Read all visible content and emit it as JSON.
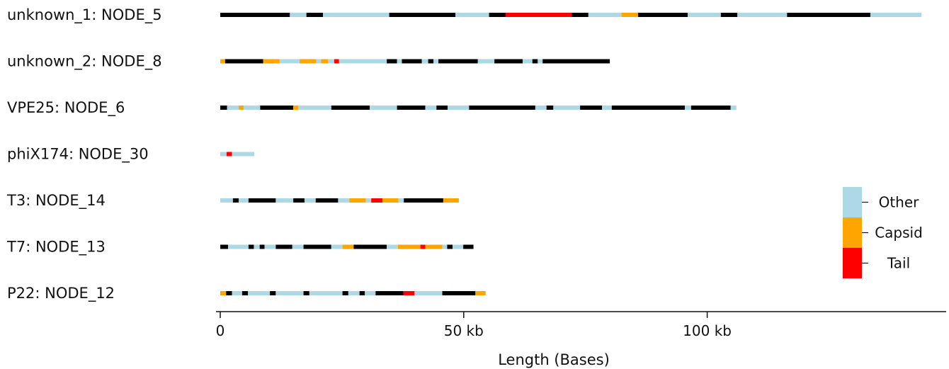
{
  "chart_data": {
    "type": "bar",
    "title": "",
    "xlabel": "Length (Bases)",
    "ylabel": "",
    "xlim": [
      0,
      145000
    ],
    "x_ticks": [
      {
        "value": 0,
        "label": "0"
      },
      {
        "value": 50000,
        "label": "50 kb"
      },
      {
        "value": 100000,
        "label": "100 kb"
      }
    ],
    "grid": false,
    "legend_position": "right",
    "colors": {
      "Other": "#add8e6",
      "Capsid": "#ffa500",
      "Tail": "#ff0000",
      "unannotated": "#000000"
    },
    "legend": [
      {
        "name": "Other",
        "color": "#add8e6"
      },
      {
        "name": "Capsid",
        "color": "#ffa500"
      },
      {
        "name": "Tail",
        "color": "#ff0000"
      }
    ],
    "genomes": [
      {
        "label": "unknown_1: NODE_5",
        "length": 144000,
        "segments": [
          {
            "start": 0,
            "end": 14300,
            "class": "unannotated"
          },
          {
            "start": 14300,
            "end": 17700,
            "class": "Other"
          },
          {
            "start": 17700,
            "end": 21100,
            "class": "unannotated"
          },
          {
            "start": 21100,
            "end": 34700,
            "class": "Other"
          },
          {
            "start": 34700,
            "end": 48300,
            "class": "unannotated"
          },
          {
            "start": 48300,
            "end": 55200,
            "class": "Other"
          },
          {
            "start": 55200,
            "end": 58600,
            "class": "unannotated"
          },
          {
            "start": 58600,
            "end": 72200,
            "class": "Tail"
          },
          {
            "start": 72200,
            "end": 75600,
            "class": "unannotated"
          },
          {
            "start": 75600,
            "end": 82400,
            "class": "Other"
          },
          {
            "start": 82400,
            "end": 85800,
            "class": "Capsid"
          },
          {
            "start": 85800,
            "end": 96000,
            "class": "unannotated"
          },
          {
            "start": 96000,
            "end": 102800,
            "class": "Other"
          },
          {
            "start": 102800,
            "end": 106200,
            "class": "unannotated"
          },
          {
            "start": 106200,
            "end": 116400,
            "class": "Other"
          },
          {
            "start": 116400,
            "end": 133500,
            "class": "unannotated"
          },
          {
            "start": 133500,
            "end": 144000,
            "class": "Other"
          }
        ]
      },
      {
        "label": "unknown_2: NODE_8",
        "length": 80000,
        "segments": [
          {
            "start": 0,
            "end": 1000,
            "class": "Capsid"
          },
          {
            "start": 1000,
            "end": 8800,
            "class": "unannotated"
          },
          {
            "start": 8800,
            "end": 12200,
            "class": "Capsid"
          },
          {
            "start": 12200,
            "end": 16300,
            "class": "Other"
          },
          {
            "start": 16300,
            "end": 19700,
            "class": "Capsid"
          },
          {
            "start": 19700,
            "end": 20700,
            "class": "Other"
          },
          {
            "start": 20700,
            "end": 22100,
            "class": "Capsid"
          },
          {
            "start": 22100,
            "end": 23400,
            "class": "Other"
          },
          {
            "start": 23400,
            "end": 24400,
            "class": "Tail"
          },
          {
            "start": 24400,
            "end": 34200,
            "class": "Other"
          },
          {
            "start": 34200,
            "end": 36300,
            "class": "unannotated"
          },
          {
            "start": 36300,
            "end": 37300,
            "class": "Other"
          },
          {
            "start": 37300,
            "end": 41400,
            "class": "unannotated"
          },
          {
            "start": 41400,
            "end": 42700,
            "class": "Other"
          },
          {
            "start": 42700,
            "end": 43800,
            "class": "unannotated"
          },
          {
            "start": 43800,
            "end": 44800,
            "class": "Other"
          },
          {
            "start": 44800,
            "end": 52900,
            "class": "unannotated"
          },
          {
            "start": 52900,
            "end": 56300,
            "class": "Other"
          },
          {
            "start": 56300,
            "end": 62100,
            "class": "unannotated"
          },
          {
            "start": 62100,
            "end": 64100,
            "class": "Other"
          },
          {
            "start": 64100,
            "end": 65200,
            "class": "unannotated"
          },
          {
            "start": 65200,
            "end": 66200,
            "class": "Other"
          },
          {
            "start": 66200,
            "end": 80000,
            "class": "unannotated"
          }
        ]
      },
      {
        "label": "VPE25: NODE_6",
        "length": 106000,
        "segments": [
          {
            "start": 0,
            "end": 1400,
            "class": "unannotated"
          },
          {
            "start": 1400,
            "end": 3800,
            "class": "Other"
          },
          {
            "start": 3800,
            "end": 4800,
            "class": "Capsid"
          },
          {
            "start": 4800,
            "end": 8200,
            "class": "Other"
          },
          {
            "start": 8200,
            "end": 15000,
            "class": "unannotated"
          },
          {
            "start": 15000,
            "end": 16000,
            "class": "Capsid"
          },
          {
            "start": 16000,
            "end": 22800,
            "class": "Other"
          },
          {
            "start": 22800,
            "end": 30700,
            "class": "unannotated"
          },
          {
            "start": 30700,
            "end": 36300,
            "class": "Other"
          },
          {
            "start": 36300,
            "end": 42100,
            "class": "unannotated"
          },
          {
            "start": 42100,
            "end": 44400,
            "class": "Other"
          },
          {
            "start": 44400,
            "end": 46700,
            "class": "unannotated"
          },
          {
            "start": 46700,
            "end": 51100,
            "class": "Other"
          },
          {
            "start": 51100,
            "end": 64700,
            "class": "unannotated"
          },
          {
            "start": 64700,
            "end": 67000,
            "class": "Other"
          },
          {
            "start": 67000,
            "end": 68400,
            "class": "unannotated"
          },
          {
            "start": 68400,
            "end": 73900,
            "class": "Other"
          },
          {
            "start": 73900,
            "end": 78400,
            "class": "unannotated"
          },
          {
            "start": 78400,
            "end": 80400,
            "class": "Other"
          },
          {
            "start": 80400,
            "end": 95400,
            "class": "unannotated"
          },
          {
            "start": 95400,
            "end": 96700,
            "class": "Other"
          },
          {
            "start": 96700,
            "end": 104800,
            "class": "unannotated"
          },
          {
            "start": 104800,
            "end": 106000,
            "class": "Other"
          }
        ]
      },
      {
        "label": "phiX174: NODE_30",
        "length": 7000,
        "segments": [
          {
            "start": 0,
            "end": 1300,
            "class": "Other"
          },
          {
            "start": 1300,
            "end": 2400,
            "class": "Tail"
          },
          {
            "start": 2400,
            "end": 7000,
            "class": "Other"
          }
        ]
      },
      {
        "label": "T3: NODE_14",
        "length": 49000,
        "segments": [
          {
            "start": 0,
            "end": 2600,
            "class": "Other"
          },
          {
            "start": 2600,
            "end": 3800,
            "class": "unannotated"
          },
          {
            "start": 3800,
            "end": 5800,
            "class": "Other"
          },
          {
            "start": 5800,
            "end": 11400,
            "class": "unannotated"
          },
          {
            "start": 11400,
            "end": 15000,
            "class": "Other"
          },
          {
            "start": 15000,
            "end": 17300,
            "class": "unannotated"
          },
          {
            "start": 17300,
            "end": 19600,
            "class": "Other"
          },
          {
            "start": 19600,
            "end": 24200,
            "class": "unannotated"
          },
          {
            "start": 24200,
            "end": 26500,
            "class": "Other"
          },
          {
            "start": 26500,
            "end": 29900,
            "class": "Capsid"
          },
          {
            "start": 29900,
            "end": 31000,
            "class": "Other"
          },
          {
            "start": 31000,
            "end": 33300,
            "class": "Tail"
          },
          {
            "start": 33300,
            "end": 36600,
            "class": "Capsid"
          },
          {
            "start": 36600,
            "end": 37700,
            "class": "Other"
          },
          {
            "start": 37700,
            "end": 45800,
            "class": "unannotated"
          },
          {
            "start": 45800,
            "end": 49000,
            "class": "Capsid"
          }
        ]
      },
      {
        "label": "T7: NODE_13",
        "length": 52000,
        "segments": [
          {
            "start": 0,
            "end": 1600,
            "class": "unannotated"
          },
          {
            "start": 1600,
            "end": 5800,
            "class": "Other"
          },
          {
            "start": 5800,
            "end": 6900,
            "class": "unannotated"
          },
          {
            "start": 6900,
            "end": 8100,
            "class": "Other"
          },
          {
            "start": 8100,
            "end": 9100,
            "class": "unannotated"
          },
          {
            "start": 9100,
            "end": 11400,
            "class": "Other"
          },
          {
            "start": 11400,
            "end": 14800,
            "class": "unannotated"
          },
          {
            "start": 14800,
            "end": 17100,
            "class": "Other"
          },
          {
            "start": 17100,
            "end": 22800,
            "class": "unannotated"
          },
          {
            "start": 22800,
            "end": 25100,
            "class": "Other"
          },
          {
            "start": 25100,
            "end": 27400,
            "class": "Capsid"
          },
          {
            "start": 27400,
            "end": 34200,
            "class": "unannotated"
          },
          {
            "start": 34200,
            "end": 36500,
            "class": "Other"
          },
          {
            "start": 36500,
            "end": 41100,
            "class": "Capsid"
          },
          {
            "start": 41100,
            "end": 42100,
            "class": "Tail"
          },
          {
            "start": 42100,
            "end": 45600,
            "class": "Capsid"
          },
          {
            "start": 45600,
            "end": 46600,
            "class": "Other"
          },
          {
            "start": 46600,
            "end": 47700,
            "class": "unannotated"
          },
          {
            "start": 47700,
            "end": 49900,
            "class": "Other"
          },
          {
            "start": 49900,
            "end": 52000,
            "class": "unannotated"
          }
        ]
      },
      {
        "label": "P22: NODE_12",
        "length": 54500,
        "segments": [
          {
            "start": 0,
            "end": 1200,
            "class": "Capsid"
          },
          {
            "start": 1200,
            "end": 2400,
            "class": "unannotated"
          },
          {
            "start": 2400,
            "end": 4500,
            "class": "Other"
          },
          {
            "start": 4500,
            "end": 5700,
            "class": "unannotated"
          },
          {
            "start": 5700,
            "end": 10200,
            "class": "Other"
          },
          {
            "start": 10200,
            "end": 11400,
            "class": "unannotated"
          },
          {
            "start": 11400,
            "end": 17100,
            "class": "Other"
          },
          {
            "start": 17100,
            "end": 18300,
            "class": "unannotated"
          },
          {
            "start": 18300,
            "end": 25100,
            "class": "Other"
          },
          {
            "start": 25100,
            "end": 26300,
            "class": "unannotated"
          },
          {
            "start": 26300,
            "end": 28600,
            "class": "Other"
          },
          {
            "start": 28600,
            "end": 29700,
            "class": "unannotated"
          },
          {
            "start": 29700,
            "end": 31900,
            "class": "Other"
          },
          {
            "start": 31900,
            "end": 37600,
            "class": "unannotated"
          },
          {
            "start": 37600,
            "end": 39900,
            "class": "Tail"
          },
          {
            "start": 39900,
            "end": 45600,
            "class": "Other"
          },
          {
            "start": 45600,
            "end": 52400,
            "class": "unannotated"
          },
          {
            "start": 52400,
            "end": 54500,
            "class": "Capsid"
          }
        ]
      }
    ]
  }
}
